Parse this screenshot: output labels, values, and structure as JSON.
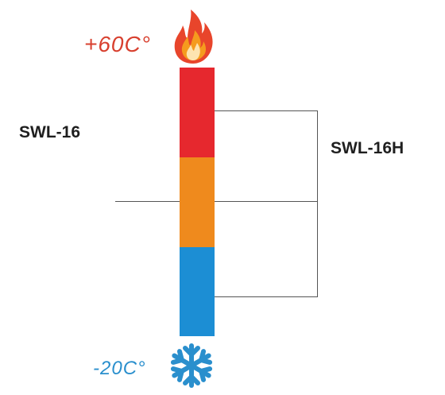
{
  "temperatures": {
    "max": "+60C°",
    "min": "-20C°"
  },
  "labels": {
    "left": "SWL-16",
    "right": "SWL-16H"
  },
  "segments": [
    {
      "name": "hot",
      "color": "#e6282e"
    },
    {
      "name": "mid",
      "color": "#ef8a1d"
    },
    {
      "name": "cold",
      "color": "#1c8ed4"
    }
  ],
  "icons": {
    "top": "flame-icon",
    "bottom": "snowflake-icon"
  }
}
